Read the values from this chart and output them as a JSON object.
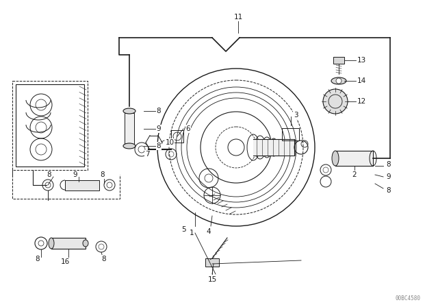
{
  "bg": "#ffffff",
  "lc": "#1a1a1a",
  "fig_w": 6.4,
  "fig_h": 4.48,
  "dpi": 100,
  "watermark": "00BC4580",
  "xlim": [
    0,
    640
  ],
  "ylim": [
    0,
    448
  ]
}
